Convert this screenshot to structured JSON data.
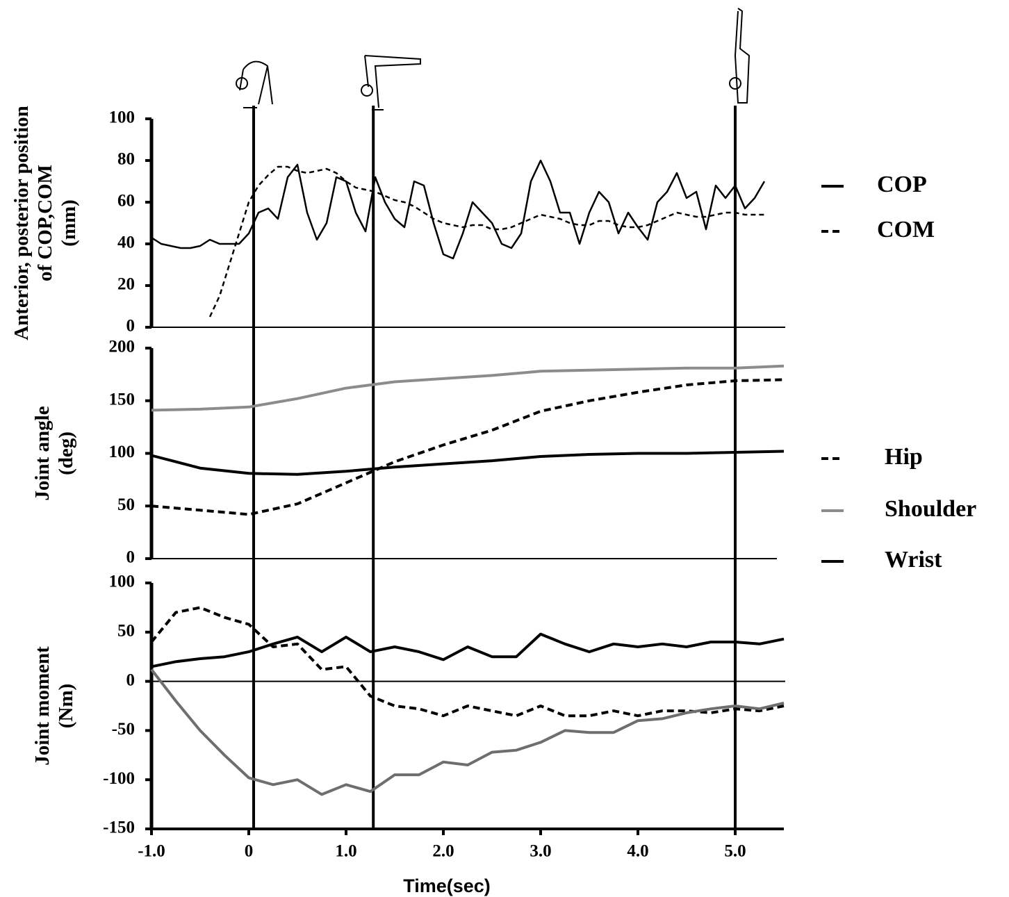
{
  "chart_data": [
    {
      "type": "line",
      "y_label": [
        "Anterior, posterior position",
        "of COP,COM",
        "(mm)"
      ],
      "xlim": [
        -1,
        5.5
      ],
      "ylim": [
        0,
        100
      ],
      "yticks": [
        0,
        20,
        40,
        60,
        80,
        100
      ],
      "event_lines": [
        0.05,
        1.28,
        5.0
      ],
      "x": [
        -1.0,
        -0.9,
        -0.8,
        -0.7,
        -0.6,
        -0.5,
        -0.4,
        -0.3,
        -0.2,
        -0.1,
        0.0,
        0.1,
        0.2,
        0.3,
        0.4,
        0.5,
        0.6,
        0.7,
        0.8,
        0.9,
        1.0,
        1.1,
        1.2,
        1.3,
        1.4,
        1.5,
        1.6,
        1.7,
        1.8,
        1.9,
        2.0,
        2.1,
        2.2,
        2.3,
        2.4,
        2.5,
        2.6,
        2.7,
        2.8,
        2.9,
        3.0,
        3.1,
        3.2,
        3.3,
        3.4,
        3.5,
        3.6,
        3.7,
        3.8,
        3.9,
        4.0,
        4.1,
        4.2,
        4.3,
        4.4,
        4.5,
        4.6,
        4.7,
        4.8,
        4.9,
        5.0,
        5.1,
        5.2,
        5.3
      ],
      "series": [
        {
          "name": "COP",
          "color": "#000000",
          "dash": false,
          "values": [
            43,
            40,
            39,
            38,
            38,
            39,
            42,
            40,
            40,
            40,
            45,
            55,
            57,
            52,
            72,
            78,
            55,
            42,
            50,
            72,
            70,
            55,
            46,
            72,
            60,
            52,
            48,
            70,
            68,
            50,
            35,
            33,
            45,
            60,
            55,
            50,
            40,
            38,
            45,
            70,
            80,
            70,
            55,
            55,
            40,
            55,
            65,
            60,
            45,
            55,
            48,
            42,
            60,
            65,
            74,
            62,
            65,
            47,
            68,
            62,
            68,
            57,
            62,
            70
          ]
        },
        {
          "name": "COM",
          "color": "#000000",
          "dash": true,
          "values": [
            null,
            null,
            null,
            null,
            null,
            null,
            5,
            15,
            30,
            45,
            60,
            68,
            73,
            77,
            77,
            75,
            74,
            75,
            76,
            74,
            70,
            67,
            66,
            65,
            63,
            61,
            60,
            58,
            55,
            52,
            50,
            49,
            48,
            49,
            49,
            47,
            47,
            48,
            50,
            52,
            54,
            53,
            52,
            50,
            49,
            49,
            51,
            51,
            49,
            48,
            48,
            49,
            51,
            53,
            55,
            54,
            53,
            53,
            54,
            55,
            55,
            54,
            54,
            54
          ]
        }
      ]
    },
    {
      "type": "line",
      "y_label": [
        "Joint angle",
        "(deg)"
      ],
      "xlim": [
        -1,
        5.5
      ],
      "ylim": [
        0,
        200
      ],
      "yticks": [
        0,
        50,
        100,
        150,
        200
      ],
      "x": [
        -1.0,
        -0.5,
        0.0,
        0.5,
        1.0,
        1.5,
        2.0,
        2.5,
        3.0,
        3.5,
        4.0,
        4.5,
        5.0,
        5.5
      ],
      "series": [
        {
          "name": "Hip",
          "color": "#000000",
          "dash": true,
          "values": [
            50,
            46,
            42,
            52,
            72,
            92,
            108,
            122,
            140,
            150,
            158,
            165,
            169,
            170
          ]
        },
        {
          "name": "Shoulder",
          "color": "#8c8c8c",
          "dash": false,
          "values": [
            141,
            142,
            144,
            152,
            162,
            168,
            171,
            174,
            178,
            179,
            180,
            181,
            181,
            183
          ]
        },
        {
          "name": "Wrist",
          "color": "#000000",
          "dash": false,
          "values": [
            98,
            86,
            81,
            80,
            83,
            87,
            90,
            93,
            97,
            99,
            100,
            100,
            101,
            102
          ]
        }
      ]
    },
    {
      "type": "line",
      "y_label": [
        "Joint moment",
        "(Nm)"
      ],
      "x_label": "Time(sec)",
      "xlim": [
        -1,
        5.5
      ],
      "ylim": [
        -150,
        100
      ],
      "yticks": [
        -150,
        -100,
        -50,
        0,
        50,
        100
      ],
      "xticks": [
        {
          "value": -1,
          "label": "-1.0"
        },
        0,
        {
          "value": 1,
          "label": "1.0"
        },
        {
          "value": 2,
          "label": "2.0"
        },
        {
          "value": 3,
          "label": "3.0"
        },
        {
          "value": 4,
          "label": "4.0"
        },
        {
          "value": 5,
          "label": "5.0"
        }
      ],
      "x": [
        -1.0,
        -0.75,
        -0.5,
        -0.25,
        0.0,
        0.25,
        0.5,
        0.75,
        1.0,
        1.25,
        1.5,
        1.75,
        2.0,
        2.25,
        2.5,
        2.75,
        3.0,
        3.25,
        3.5,
        3.75,
        4.0,
        4.25,
        4.5,
        4.75,
        5.0,
        5.25,
        5.5
      ],
      "series": [
        {
          "color": "#000000",
          "dash": true,
          "values": [
            40,
            70,
            75,
            65,
            58,
            35,
            38,
            12,
            15,
            -15,
            -25,
            -28,
            -35,
            -25,
            -30,
            -35,
            -25,
            -35,
            -35,
            -30,
            -35,
            -30,
            -30,
            -32,
            -28,
            -30,
            -25
          ]
        },
        {
          "color": "#6e6e6e",
          "dash": false,
          "values": [
            12,
            -20,
            -50,
            -75,
            -98,
            -105,
            -100,
            -115,
            -105,
            -112,
            -95,
            -95,
            -82,
            -85,
            -72,
            -70,
            -62,
            -50,
            -52,
            -52,
            -40,
            -38,
            -32,
            -28,
            -25,
            -28,
            -22
          ]
        },
        {
          "color": "#000000",
          "dash": false,
          "values": [
            15,
            20,
            23,
            25,
            30,
            38,
            45,
            30,
            45,
            30,
            35,
            30,
            22,
            35,
            25,
            25,
            48,
            38,
            30,
            38,
            35,
            38,
            35,
            40,
            40,
            38,
            43
          ]
        }
      ]
    }
  ]
}
